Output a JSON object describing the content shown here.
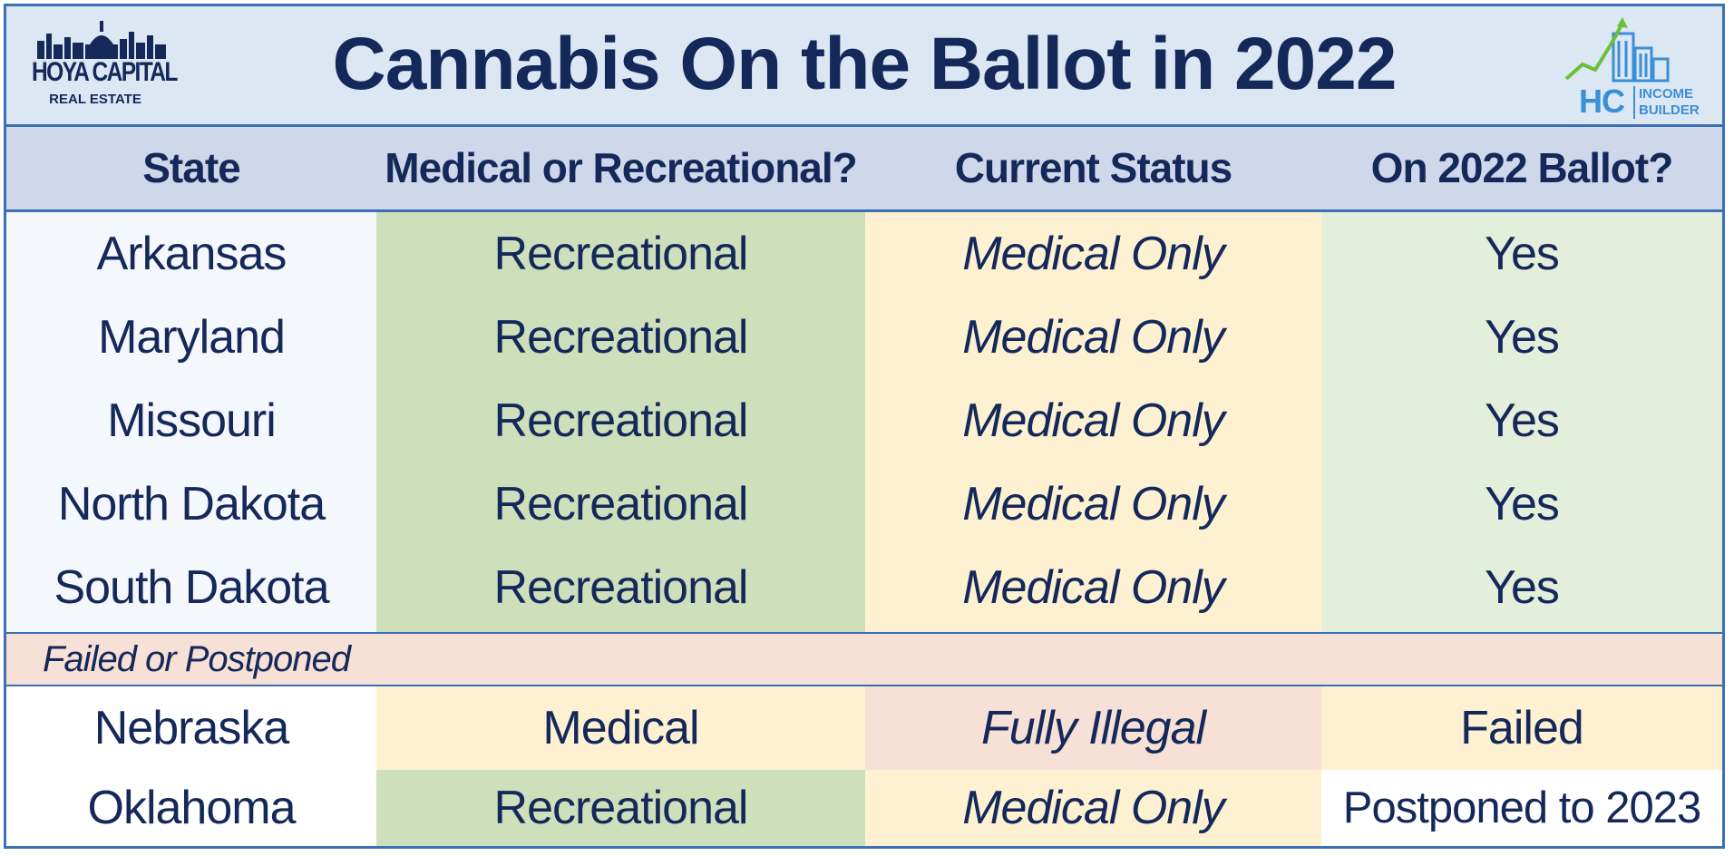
{
  "title": "Cannabis On the Ballot in 2022",
  "logo_left": {
    "name": "HOYA CAPITAL",
    "sub": "REAL ESTATE"
  },
  "logo_right": {
    "initials": "HC",
    "line1": "INCOME",
    "line2": "BUILDER"
  },
  "columns": [
    "State",
    "Medical or Recreational?",
    "Current Status",
    "On 2022 Ballot?"
  ],
  "rows": [
    {
      "state": "Arkansas",
      "type": "Recreational",
      "status": "Medical Only",
      "ballot": "Yes"
    },
    {
      "state": "Maryland",
      "type": "Recreational",
      "status": "Medical Only",
      "ballot": "Yes"
    },
    {
      "state": "Missouri",
      "type": "Recreational",
      "status": "Medical Only",
      "ballot": "Yes"
    },
    {
      "state": "North Dakota",
      "type": "Recreational",
      "status": "Medical Only",
      "ballot": "Yes"
    },
    {
      "state": "South Dakota",
      "type": "Recreational",
      "status": "Medical Only",
      "ballot": "Yes"
    }
  ],
  "section_label": "Failed or Postponed",
  "failed_rows": [
    {
      "state": "Nebraska",
      "type": "Medical",
      "status": "Fully Illegal",
      "ballot": "Failed"
    },
    {
      "state": "Oklahoma",
      "type": "Recreational",
      "status": "Medical Only",
      "ballot": "Postponed to 2023"
    }
  ],
  "colors": {
    "border": "#3b6fb6",
    "text": "#14285a",
    "title_bg": "#dce7f4",
    "header_bg": "#cfd8ea",
    "green": "#cde0bb",
    "yellow": "#fdf1d2",
    "light_green": "#e3eedb",
    "peach": "#f7e0d5"
  }
}
